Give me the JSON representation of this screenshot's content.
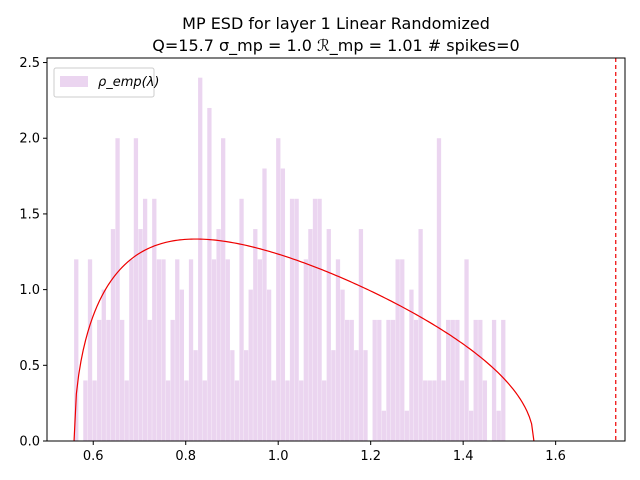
{
  "chart_data": {
    "type": "bar",
    "title_line1": "MP ESD for layer 1 Linear Randomized",
    "title_line2": "Q=15.7 σ_mp = 1.0 ℛ_mp = 1.01 # spikes=0",
    "xlabel": "",
    "ylabel": "",
    "xlim": [
      0.5,
      1.75
    ],
    "ylim": [
      0,
      2.53
    ],
    "xticks": [
      0.6,
      0.8,
      1.0,
      1.2,
      1.4,
      1.6
    ],
    "xtick_labels": [
      "0.6",
      "0.8",
      "1.0",
      "1.2",
      "1.4",
      "1.6"
    ],
    "yticks": [
      0.0,
      0.5,
      1.0,
      1.5,
      2.0,
      2.5
    ],
    "ytick_labels": [
      "0.0",
      "0.5",
      "1.0",
      "1.5",
      "2.0",
      "2.5"
    ],
    "legend": {
      "placement": "top-left",
      "entries": [
        {
          "label": "ρ_emp(λ)",
          "color": "#ebd5f0"
        }
      ]
    },
    "histogram": {
      "name": "ρ_emp(λ)",
      "color": "#ebd5f0",
      "bin_start": 0.5586,
      "bin_width": 0.00993,
      "values": [
        1.2,
        0,
        0.4,
        1.2,
        0.4,
        0.8,
        1.0,
        0.8,
        1.4,
        2.0,
        0.8,
        0.4,
        1.2,
        2.0,
        1.4,
        1.6,
        0.8,
        1.6,
        1.2,
        1.2,
        0.4,
        0.8,
        1.2,
        1.0,
        0.4,
        1.2,
        0.6,
        2.4,
        0.4,
        2.2,
        1.2,
        1.4,
        2.0,
        1.2,
        0.6,
        0.4,
        1.6,
        0.6,
        1.0,
        1.4,
        1.2,
        1.8,
        1.0,
        0.4,
        2.0,
        1.8,
        0.4,
        1.6,
        1.6,
        0.4,
        1.2,
        1.4,
        1.6,
        1.6,
        0.4,
        1.4,
        0.6,
        1.2,
        1.0,
        0.8,
        0.8,
        0.6,
        1.4,
        0.6,
        0.0,
        0.8,
        0.8,
        0.2,
        0.8,
        0.8,
        1.2,
        1.2,
        0.2,
        1.0,
        0.8,
        1.4,
        0.4,
        0.4,
        0.4,
        2.0,
        0.4,
        0.8,
        0.8,
        0.8,
        0.4,
        1.2,
        0.2,
        0.8,
        0.8,
        0.4,
        0.0,
        0.8,
        0.2,
        0.8,
        0.0
      ]
    },
    "mp_curve": {
      "color": "#ee0000",
      "sigma": 1.0,
      "Q": 15.7,
      "lambda_min": 0.5585,
      "lambda_max": 1.553
    },
    "threshold_line": {
      "x": 1.73,
      "color": "#ee0000",
      "style": "dashed"
    },
    "grid": false
  }
}
